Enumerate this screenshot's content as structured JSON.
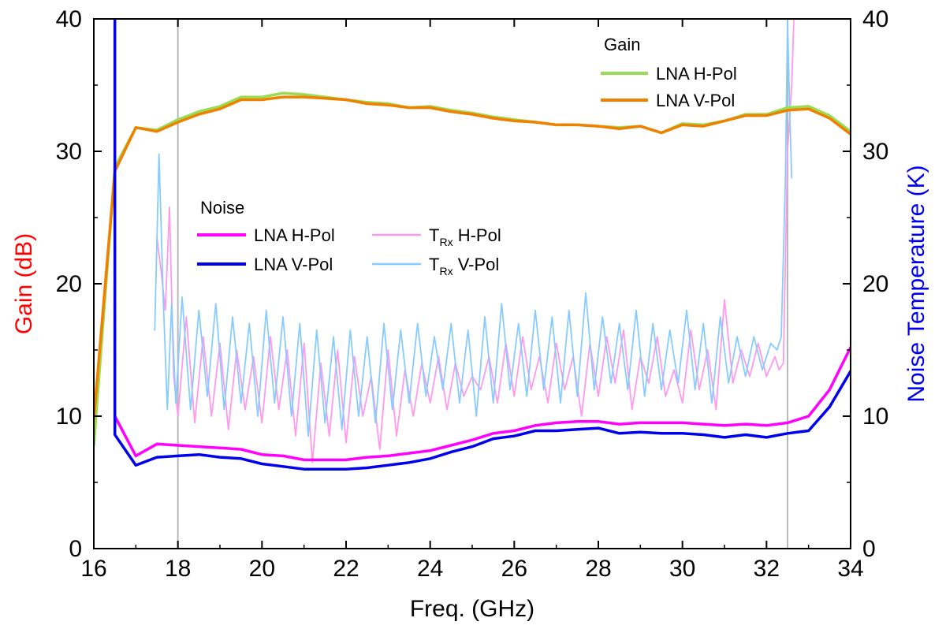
{
  "chart_data": {
    "type": "line",
    "title": "",
    "xlabel": "Freq. (GHz)",
    "ylabel_left": "Gain (dB)",
    "ylabel_right": "Noise Temperature (K)",
    "xlim": [
      16,
      34
    ],
    "ylim_left": [
      0,
      40
    ],
    "ylim_right": [
      0,
      40
    ],
    "x_ticks": [
      "16",
      "18",
      "20",
      "22",
      "24",
      "26",
      "28",
      "30",
      "32",
      "34"
    ],
    "y_ticks_left": [
      "0",
      "10",
      "20",
      "30",
      "40"
    ],
    "y_ticks_right": [
      "0",
      "10",
      "20",
      "30",
      "40"
    ],
    "ytick_color_left": "#ff0000",
    "ytick_color_right": "#0000ff",
    "vlines": [
      18,
      32.5
    ],
    "legend_gain": {
      "title": "Gain",
      "entries": [
        {
          "label": "LNA H-Pol",
          "color": "#99dd55"
        },
        {
          "label": "LNA V-Pol",
          "color": "#f08000"
        }
      ]
    },
    "legend_noise": {
      "title": "Noise",
      "entries": [
        {
          "label": "LNA H-Pol",
          "color": "#ff00ff"
        },
        {
          "label": "LNA V-Pol",
          "color": "#0000ee"
        },
        {
          "label_main": "T",
          "label_sub": "Rx",
          "label_rest": " H-Pol",
          "color": "#ff99ee"
        },
        {
          "label_main": "T",
          "label_sub": "Rx",
          "label_rest": " V-Pol",
          "color": "#88ccff"
        }
      ]
    },
    "series": [
      {
        "name": "Gain LNA H-Pol",
        "axis": "left",
        "color": "#99dd55",
        "width": 3.5,
        "x": [
          16,
          16.5,
          17,
          17.5,
          18,
          18.5,
          19,
          19.5,
          20,
          20.5,
          21,
          21.5,
          22,
          22.5,
          23,
          23.5,
          24,
          24.5,
          25,
          25.5,
          26,
          26.5,
          27,
          27.5,
          28,
          28.5,
          29,
          29.5,
          30,
          30.5,
          31,
          31.5,
          32,
          32.5,
          33,
          33.5,
          34
        ],
        "values": [
          7.8,
          28.8,
          31.8,
          31.6,
          32.4,
          33.0,
          33.4,
          34.1,
          34.1,
          34.4,
          34.3,
          34.1,
          33.9,
          33.7,
          33.6,
          33.3,
          33.4,
          33.1,
          32.9,
          32.6,
          32.4,
          32.2,
          32.0,
          32.0,
          31.9,
          31.8,
          31.9,
          31.4,
          32.1,
          32.0,
          32.3,
          32.8,
          32.8,
          33.3,
          33.4,
          32.7,
          31.5
        ]
      },
      {
        "name": "Gain LNA V-Pol",
        "axis": "left",
        "color": "#f08000",
        "width": 3.5,
        "x": [
          16,
          16.5,
          17,
          17.5,
          18,
          18.5,
          19,
          19.5,
          20,
          20.5,
          21,
          21.5,
          22,
          22.5,
          23,
          23.5,
          24,
          24.5,
          25,
          25.5,
          26,
          26.5,
          27,
          27.5,
          28,
          28.5,
          29,
          29.5,
          30,
          30.5,
          31,
          31.5,
          32,
          32.5,
          33,
          33.5,
          34
        ],
        "values": [
          9.8,
          28.5,
          31.8,
          31.5,
          32.2,
          32.8,
          33.2,
          33.9,
          33.9,
          34.1,
          34.1,
          34.0,
          33.9,
          33.6,
          33.5,
          33.3,
          33.3,
          33.0,
          32.8,
          32.5,
          32.3,
          32.2,
          32.0,
          32.0,
          31.9,
          31.7,
          31.9,
          31.4,
          32.0,
          31.9,
          32.3,
          32.7,
          32.7,
          33.1,
          33.2,
          32.5,
          31.3
        ]
      },
      {
        "name": "Noise LNA H-Pol",
        "axis": "right",
        "color": "#ff00ff",
        "width": 3.5,
        "x": [
          16.5,
          17,
          17.5,
          18,
          18.5,
          19,
          19.5,
          20,
          20.5,
          21,
          21.5,
          22,
          22.5,
          23,
          23.5,
          24,
          24.5,
          25,
          25.5,
          26,
          26.5,
          27,
          27.5,
          28,
          28.5,
          29,
          29.5,
          30,
          30.5,
          31,
          31.5,
          32,
          32.5,
          33,
          33.5,
          34
        ],
        "values": [
          10.0,
          7.0,
          7.9,
          7.8,
          7.7,
          7.6,
          7.5,
          7.1,
          7.0,
          6.7,
          6.7,
          6.7,
          6.9,
          7.0,
          7.2,
          7.4,
          7.8,
          8.2,
          8.7,
          8.9,
          9.3,
          9.5,
          9.6,
          9.6,
          9.4,
          9.5,
          9.5,
          9.5,
          9.4,
          9.3,
          9.4,
          9.3,
          9.5,
          10.0,
          12.0,
          15.2
        ]
      },
      {
        "name": "Noise LNA V-Pol",
        "axis": "right",
        "color": "#0000ee",
        "width": 3.5,
        "x": [
          16.5,
          16.5,
          17,
          17.5,
          18,
          18.5,
          19,
          19.5,
          20,
          20.5,
          21,
          21.5,
          22,
          22.5,
          23,
          23.5,
          24,
          24.5,
          25,
          25.5,
          26,
          26.5,
          27,
          27.5,
          28,
          28.5,
          29,
          29.5,
          30,
          30.5,
          31,
          31.5,
          32,
          32.5,
          33,
          33.5,
          34
        ],
        "values": [
          40.0,
          8.6,
          6.3,
          6.9,
          7.0,
          7.1,
          6.9,
          6.8,
          6.4,
          6.2,
          6.0,
          6.0,
          6.0,
          6.1,
          6.3,
          6.5,
          6.8,
          7.3,
          7.7,
          8.3,
          8.5,
          8.9,
          8.9,
          9.0,
          9.1,
          8.7,
          8.8,
          8.7,
          8.7,
          8.6,
          8.4,
          8.6,
          8.4,
          8.7,
          8.9,
          10.7,
          13.4
        ]
      },
      {
        "name": "Noise T_Rx H-Pol",
        "axis": "right",
        "color": "#ff99ee",
        "width": 1.8,
        "x": [
          17.5,
          17.6,
          17.7,
          17.8,
          17.9,
          18.0,
          18.2,
          18.4,
          18.6,
          18.8,
          19.0,
          19.2,
          19.4,
          19.6,
          19.8,
          20.0,
          20.2,
          20.4,
          20.6,
          20.8,
          21.0,
          21.2,
          21.4,
          21.6,
          21.8,
          22.0,
          22.2,
          22.4,
          22.6,
          22.8,
          23.0,
          23.2,
          23.4,
          23.6,
          23.8,
          24.0,
          24.2,
          24.4,
          24.6,
          24.8,
          25.0,
          25.2,
          25.4,
          25.6,
          25.8,
          26.0,
          26.2,
          26.4,
          26.6,
          26.8,
          27.0,
          27.2,
          27.4,
          27.6,
          27.8,
          28.0,
          28.2,
          28.4,
          28.6,
          28.8,
          29.0,
          29.2,
          29.4,
          29.6,
          29.8,
          30.0,
          30.2,
          30.4,
          30.6,
          30.8,
          31.0,
          31.2,
          31.4,
          31.6,
          31.8,
          32.0,
          32.2,
          32.3,
          32.4,
          32.5,
          32.6,
          32.65
        ],
        "values": [
          23.5,
          21.0,
          18.0,
          25.8,
          13.0,
          10.0,
          17.5,
          9.5,
          16.0,
          10.0,
          15.5,
          9.0,
          15.0,
          10.5,
          14.5,
          9.5,
          16.0,
          10.5,
          15.0,
          8.5,
          15.5,
          6.5,
          14.0,
          8.5,
          15.0,
          8.0,
          14.5,
          10.0,
          13.0,
          7.5,
          15.0,
          8.5,
          13.5,
          10.0,
          14.0,
          11.0,
          14.5,
          10.5,
          14.0,
          11.5,
          13.0,
          12.0,
          14.5,
          11.0,
          15.5,
          11.5,
          16.0,
          12.0,
          14.5,
          11.0,
          15.5,
          12.0,
          14.5,
          10.0,
          15.5,
          11.5,
          16.0,
          12.5,
          16.5,
          10.5,
          14.5,
          12.5,
          16.0,
          11.5,
          13.5,
          11.0,
          16.5,
          12.0,
          15.0,
          10.5,
          18.8,
          12.5,
          15.0,
          13.0,
          15.5,
          13.0,
          14.5,
          13.5,
          14.0,
          30.0,
          35.0,
          40.0
        ]
      },
      {
        "name": "Noise T_Rx V-Pol",
        "axis": "right",
        "color": "#88ccff",
        "width": 1.8,
        "x": [
          17.45,
          17.55,
          17.65,
          17.75,
          17.85,
          17.95,
          18.1,
          18.3,
          18.5,
          18.7,
          18.9,
          19.1,
          19.3,
          19.5,
          19.7,
          19.9,
          20.1,
          20.3,
          20.5,
          20.7,
          20.9,
          21.1,
          21.3,
          21.5,
          21.7,
          21.9,
          22.1,
          22.3,
          22.5,
          22.7,
          22.9,
          23.1,
          23.3,
          23.5,
          23.7,
          23.9,
          24.1,
          24.3,
          24.5,
          24.7,
          24.9,
          25.1,
          25.3,
          25.5,
          25.7,
          25.9,
          26.1,
          26.3,
          26.5,
          26.7,
          26.9,
          27.1,
          27.3,
          27.5,
          27.7,
          27.9,
          28.1,
          28.3,
          28.5,
          28.7,
          28.9,
          29.1,
          29.3,
          29.5,
          29.7,
          29.9,
          30.1,
          30.3,
          30.5,
          30.7,
          30.9,
          31.1,
          31.3,
          31.5,
          31.7,
          31.9,
          32.1,
          32.25,
          32.35,
          32.45,
          32.5,
          32.55,
          32.6
        ],
        "values": [
          16.5,
          29.8,
          19.0,
          10.5,
          18.5,
          11.0,
          19.0,
          10.5,
          18.0,
          11.5,
          18.5,
          10.5,
          17.5,
          11.0,
          17.0,
          10.0,
          18.0,
          11.0,
          17.5,
          10.0,
          17.0,
          8.5,
          16.5,
          9.5,
          16.0,
          9.0,
          16.5,
          10.0,
          16.0,
          9.5,
          17.0,
          10.5,
          16.5,
          11.0,
          17.0,
          11.5,
          16.0,
          12.0,
          17.0,
          11.0,
          16.5,
          10.0,
          17.5,
          11.0,
          18.5,
          12.0,
          17.0,
          11.5,
          18.0,
          12.0,
          17.5,
          11.0,
          18.0,
          11.5,
          19.3,
          12.0,
          17.5,
          12.5,
          17.0,
          12.0,
          18.0,
          11.5,
          17.0,
          12.0,
          16.5,
          12.5,
          18.0,
          12.0,
          17.0,
          11.0,
          17.5,
          12.5,
          16.0,
          13.0,
          16.0,
          13.5,
          15.5,
          15.0,
          16.0,
          28.0,
          40.0,
          33.0,
          28.0
        ]
      }
    ]
  }
}
